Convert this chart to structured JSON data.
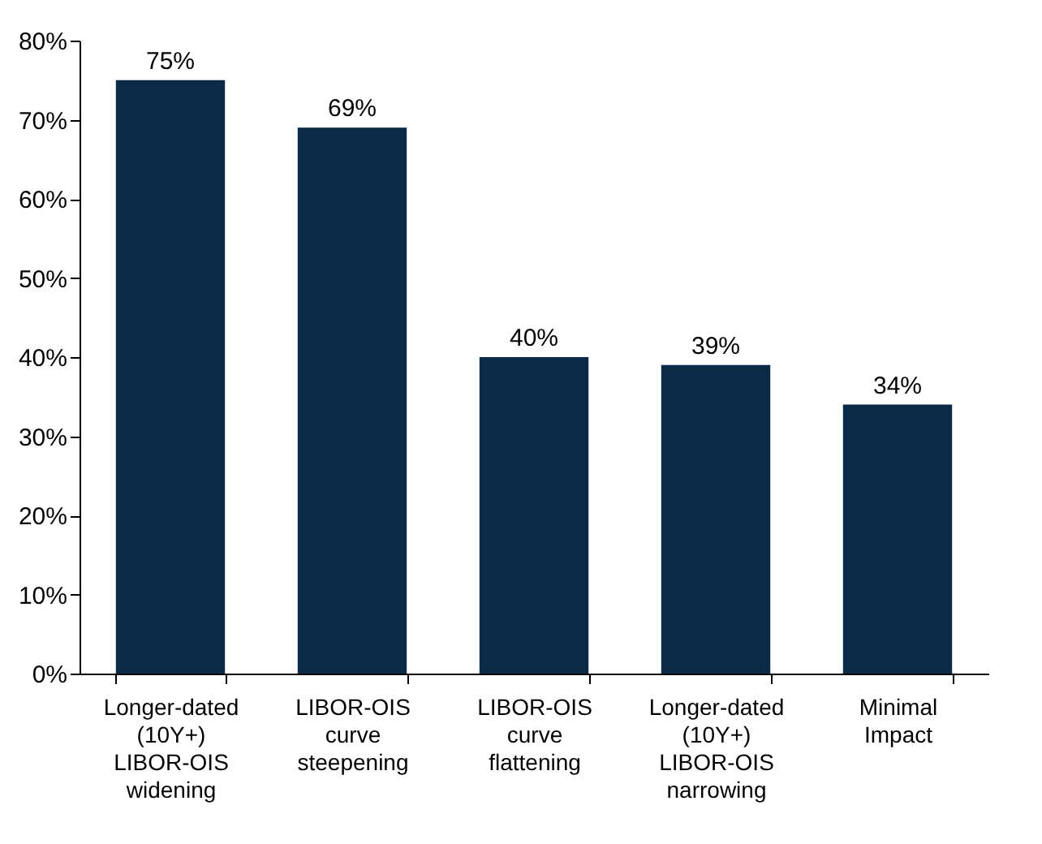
{
  "chart_data": {
    "type": "bar",
    "categories": [
      "Longer-dated (10Y+) LIBOR-OIS widening",
      "LIBOR-OIS curve steepening",
      "LIBOR-OIS curve flattening",
      "Longer-dated (10Y+) LIBOR-OIS narrowing",
      "Minimal Impact"
    ],
    "values": [
      75,
      69,
      40,
      39,
      34
    ],
    "value_labels": [
      "75%",
      "69%",
      "40%",
      "39%",
      "34%"
    ],
    "color": "#0b2a45",
    "ylim": [
      0,
      80
    ],
    "yticks": [
      {
        "value": 0,
        "label": "0%"
      },
      {
        "value": 10,
        "label": "10%"
      },
      {
        "value": 20,
        "label": "20%"
      },
      {
        "value": 30,
        "label": "30%"
      },
      {
        "value": 40,
        "label": "40%"
      },
      {
        "value": 50,
        "label": "50%"
      },
      {
        "value": 60,
        "label": "60%"
      },
      {
        "value": 70,
        "label": "70%"
      },
      {
        "value": 80,
        "label": "80%"
      }
    ],
    "grid": false
  }
}
